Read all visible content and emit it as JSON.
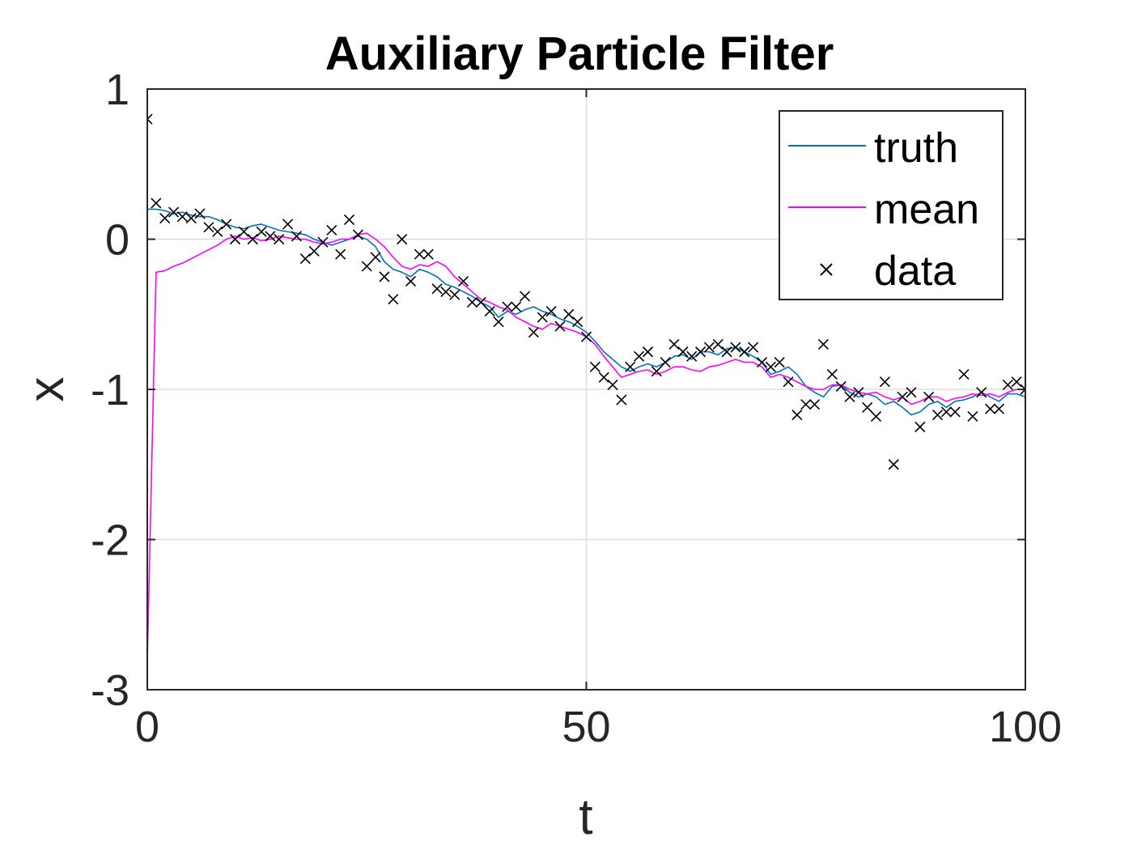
{
  "colors": {
    "truth": "#0072BD",
    "mean": "#FF00FF",
    "data": "#000000",
    "grid": "#DFDFDF",
    "axes": "#262626"
  },
  "chart_data": {
    "type": "line",
    "title": "Auxiliary Particle Filter",
    "xlabel": "t",
    "ylabel": "x",
    "xlim": [
      0,
      100
    ],
    "ylim": [
      -3,
      1
    ],
    "xticks": [
      0,
      50,
      100
    ],
    "yticks": [
      -3,
      -2,
      -1,
      0,
      1
    ],
    "xtick_labels": [
      "0",
      "50",
      "100"
    ],
    "ytick_labels": [
      "-3",
      "-2",
      "-1",
      "0",
      "1"
    ],
    "grid": true,
    "legend_position": "top-right",
    "x": [
      0,
      1,
      2,
      3,
      4,
      5,
      6,
      7,
      8,
      9,
      10,
      11,
      12,
      13,
      14,
      15,
      16,
      17,
      18,
      19,
      20,
      21,
      22,
      23,
      24,
      25,
      26,
      27,
      28,
      29,
      30,
      31,
      32,
      33,
      34,
      35,
      36,
      37,
      38,
      39,
      40,
      41,
      42,
      43,
      44,
      45,
      46,
      47,
      48,
      49,
      50,
      51,
      52,
      53,
      54,
      55,
      56,
      57,
      58,
      59,
      60,
      61,
      62,
      63,
      64,
      65,
      66,
      67,
      68,
      69,
      70,
      71,
      72,
      73,
      74,
      75,
      76,
      77,
      78,
      79,
      80,
      81,
      82,
      83,
      84,
      85,
      86,
      87,
      88,
      89,
      90,
      91,
      92,
      93,
      94,
      95,
      96,
      97,
      98,
      99,
      100
    ],
    "series": [
      {
        "name": "truth",
        "style": "line",
        "values": [
          0.2,
          0.2,
          0.19,
          0.17,
          0.18,
          0.16,
          0.15,
          0.15,
          0.13,
          0.1,
          0.08,
          0.07,
          0.09,
          0.1,
          0.08,
          0.06,
          0.05,
          0.04,
          0.03,
          0.0,
          -0.02,
          -0.04,
          -0.02,
          0.0,
          0.02,
          0.0,
          -0.05,
          -0.15,
          -0.2,
          -0.22,
          -0.25,
          -0.2,
          -0.22,
          -0.25,
          -0.3,
          -0.32,
          -0.35,
          -0.38,
          -0.42,
          -0.45,
          -0.52,
          -0.48,
          -0.5,
          -0.47,
          -0.45,
          -0.48,
          -0.5,
          -0.53,
          -0.55,
          -0.58,
          -0.62,
          -0.68,
          -0.75,
          -0.8,
          -0.85,
          -0.88,
          -0.85,
          -0.83,
          -0.85,
          -0.82,
          -0.78,
          -0.77,
          -0.8,
          -0.75,
          -0.75,
          -0.77,
          -0.73,
          -0.72,
          -0.75,
          -0.78,
          -0.82,
          -0.9,
          -0.88,
          -0.85,
          -0.9,
          -0.98,
          -1.02,
          -1.05,
          -0.98,
          -0.97,
          -1.02,
          -1.05,
          -1.03,
          -1.05,
          -1.1,
          -1.08,
          -1.12,
          -1.17,
          -1.15,
          -1.1,
          -1.08,
          -1.12,
          -1.08,
          -1.07,
          -1.05,
          -1.02,
          -1.05,
          -1.08,
          -1.03,
          -1.03,
          -1.05
        ]
      },
      {
        "name": "mean",
        "style": "line",
        "values": [
          -2.82,
          -0.22,
          -0.21,
          -0.18,
          -0.16,
          -0.13,
          -0.1,
          -0.07,
          -0.04,
          0.0,
          0.02,
          0.0,
          0.01,
          -0.01,
          0.0,
          0.02,
          0.01,
          0.0,
          0.0,
          -0.02,
          -0.03,
          -0.02,
          0.0,
          0.0,
          0.03,
          0.04,
          0.0,
          -0.05,
          -0.12,
          -0.18,
          -0.2,
          -0.17,
          -0.18,
          -0.15,
          -0.18,
          -0.25,
          -0.3,
          -0.35,
          -0.4,
          -0.42,
          -0.45,
          -0.47,
          -0.52,
          -0.55,
          -0.58,
          -0.6,
          -0.56,
          -0.58,
          -0.6,
          -0.62,
          -0.65,
          -0.7,
          -0.78,
          -0.85,
          -0.92,
          -0.9,
          -0.88,
          -0.87,
          -0.9,
          -0.88,
          -0.85,
          -0.85,
          -0.87,
          -0.88,
          -0.85,
          -0.84,
          -0.82,
          -0.8,
          -0.82,
          -0.82,
          -0.85,
          -0.92,
          -0.9,
          -0.92,
          -0.95,
          -0.98,
          -1.0,
          -1.0,
          -0.97,
          -0.97,
          -1.0,
          -1.02,
          -1.03,
          -1.02,
          -1.05,
          -1.07,
          -1.05,
          -1.1,
          -1.08,
          -1.05,
          -1.05,
          -1.08,
          -1.06,
          -1.05,
          -1.03,
          -1.04,
          -1.03,
          -1.05,
          -1.02,
          -1.0,
          -1.0
        ]
      },
      {
        "name": "data",
        "style": "markers-x",
        "values": [
          0.8,
          0.24,
          0.14,
          0.18,
          0.15,
          0.14,
          0.17,
          0.08,
          0.05,
          0.1,
          0.0,
          0.05,
          0.0,
          0.05,
          0.02,
          0.0,
          0.1,
          0.02,
          -0.13,
          -0.08,
          -0.02,
          0.06,
          -0.1,
          0.13,
          0.03,
          -0.18,
          -0.12,
          -0.25,
          -0.4,
          0.0,
          -0.28,
          -0.1,
          -0.1,
          -0.33,
          -0.35,
          -0.37,
          -0.28,
          -0.42,
          -0.42,
          -0.48,
          -0.55,
          -0.45,
          -0.45,
          -0.38,
          -0.62,
          -0.52,
          -0.48,
          -0.58,
          -0.5,
          -0.55,
          -0.65,
          -0.85,
          -0.92,
          -0.97,
          -1.07,
          -0.85,
          -0.78,
          -0.75,
          -0.88,
          -0.82,
          -0.7,
          -0.75,
          -0.78,
          -0.75,
          -0.72,
          -0.7,
          -0.75,
          -0.72,
          -0.75,
          -0.72,
          -0.82,
          -0.85,
          -0.82,
          -0.95,
          -1.17,
          -1.1,
          -1.1,
          -0.7,
          -0.9,
          -0.98,
          -1.05,
          -1.02,
          -1.12,
          -1.18,
          -0.95,
          -1.5,
          -1.05,
          -1.02,
          -1.25,
          -1.05,
          -1.17,
          -1.15,
          -1.15,
          -0.9,
          -1.18,
          -1.02,
          -1.13,
          -1.13,
          -0.97,
          -0.95,
          -1.0
        ]
      }
    ]
  }
}
